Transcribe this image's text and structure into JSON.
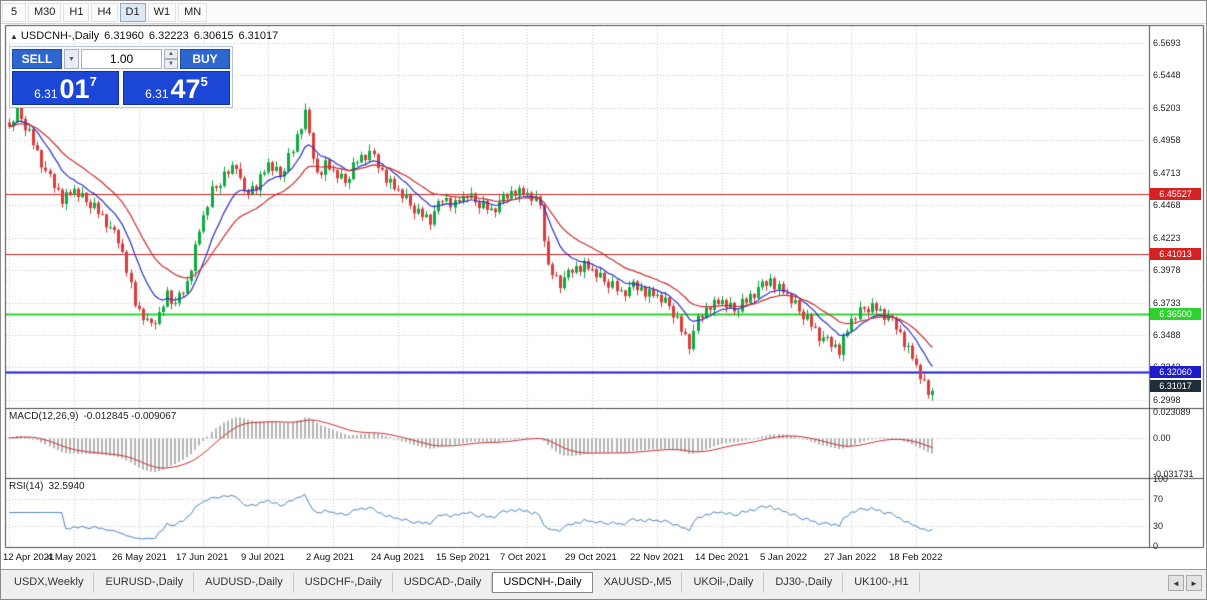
{
  "toolbar": {
    "periods": [
      {
        "label": "5",
        "active": false
      },
      {
        "label": "M30",
        "active": false
      },
      {
        "label": "H1",
        "active": false
      },
      {
        "label": "H4",
        "active": false
      },
      {
        "label": "D1",
        "active": true
      },
      {
        "label": "W1",
        "active": false
      },
      {
        "label": "MN",
        "active": false
      }
    ]
  },
  "chart_header": {
    "arrow": "▲",
    "symbol": "USDCNH-,Daily",
    "open": "6.31960",
    "high": "6.32223",
    "low": "6.30615",
    "close": "6.31017"
  },
  "trade_panel": {
    "sell_label": "SELL",
    "buy_label": "BUY",
    "volume": "1.00",
    "volume_dropdown_icon": "▼",
    "stepper_up_icon": "▲",
    "stepper_down_icon": "▼",
    "sell_price_prefix": "6.31",
    "sell_price_big": "01",
    "sell_price_sup": "7",
    "buy_price_prefix": "6.31",
    "buy_price_big": "47",
    "buy_price_sup": "5"
  },
  "price_axis": {
    "labels": [
      "6.5693",
      "6.5448",
      "6.5203",
      "6.4958",
      "6.4713",
      "6.4468",
      "6.4223",
      "6.3978",
      "6.3733",
      "6.3488",
      "6.3243",
      "6.2998"
    ]
  },
  "hlines": [
    {
      "value": 6.45527,
      "label": "6.45527",
      "color": "#d42222",
      "width": 1
    },
    {
      "value": 6.41013,
      "label": "6.41013",
      "color": "#d42222",
      "width": 1
    },
    {
      "value": 6.365,
      "label": "6.36500",
      "color": "#2ed22e",
      "width": 2
    },
    {
      "value": 6.3206,
      "label": "6.32060",
      "color": "#1c1ccd",
      "width": 2
    }
  ],
  "current_price": {
    "value": 6.31017,
    "label": "6.31017",
    "bg": "#202c38"
  },
  "indicators": {
    "macd": {
      "name": "MACD(12,26,9)",
      "values": "-0.012845 -0.009067",
      "axis": [
        {
          "v": 0.023089,
          "label": "0.023089"
        },
        {
          "v": 0,
          "label": "0.00"
        },
        {
          "v": -0.031731,
          "label": "-0.031731"
        }
      ]
    },
    "rsi": {
      "name": "RSI(14)",
      "value": "32.5940",
      "levels": [
        70,
        30
      ],
      "axis": [
        {
          "v": 100,
          "label": "100"
        },
        {
          "v": 70,
          "label": "70"
        },
        {
          "v": 30,
          "label": "30"
        },
        {
          "v": 0,
          "label": "0"
        }
      ]
    }
  },
  "date_axis": {
    "labels": [
      {
        "i": 0,
        "text": "12 Apr 2021"
      },
      {
        "i": 16,
        "text": "4 May 2021"
      },
      {
        "i": 32,
        "text": "26 May 2021"
      },
      {
        "i": 48,
        "text": "17 Jun 2021"
      },
      {
        "i": 64,
        "text": "9 Jul 2021"
      },
      {
        "i": 80,
        "text": "2 Aug 2021"
      },
      {
        "i": 96,
        "text": "24 Aug 2021"
      },
      {
        "i": 112,
        "text": "15 Sep 2021"
      },
      {
        "i": 128,
        "text": "7 Oct 2021"
      },
      {
        "i": 144,
        "text": "29 Oct 2021"
      },
      {
        "i": 160,
        "text": "22 Nov 2021"
      },
      {
        "i": 176,
        "text": "14 Dec 2021"
      },
      {
        "i": 192,
        "text": "5 Jan 2022"
      },
      {
        "i": 208,
        "text": "27 Jan 2022"
      },
      {
        "i": 224,
        "text": "18 Feb 2022"
      }
    ]
  },
  "tabbar": {
    "tabs": [
      {
        "label": "USDX,Weekly",
        "active": false
      },
      {
        "label": "EURUSD-,Daily",
        "active": false
      },
      {
        "label": "AUDUSD-,Daily",
        "active": false
      },
      {
        "label": "USDCHF-,Daily",
        "active": false
      },
      {
        "label": "USDCAD-,Daily",
        "active": false
      },
      {
        "label": "USDCNH-,Daily",
        "active": true
      },
      {
        "label": "XAUUSD-,M5",
        "active": false
      },
      {
        "label": "UKOil-,Daily",
        "active": false
      },
      {
        "label": "DJ30-,Daily",
        "active": false
      },
      {
        "label": "UK100-,H1",
        "active": false
      }
    ],
    "left_arrow": "◄",
    "right_arrow": "►"
  },
  "chart_data": {
    "type": "candlestick",
    "symbol": "USDCNH",
    "period": "Daily",
    "current_ohlc": {
      "open": 6.3196,
      "high": 6.32223,
      "low": 6.30615,
      "close": 6.31017
    },
    "ylim": [
      6.2937,
      6.5821
    ],
    "count": 229,
    "up_color": "#0fab40",
    "down_color": "#dc3c3c",
    "close_anchors": [
      [
        0,
        6.505
      ],
      [
        2,
        6.52
      ],
      [
        5,
        6.5
      ],
      [
        9,
        6.472
      ],
      [
        13,
        6.452
      ],
      [
        16,
        6.458
      ],
      [
        20,
        6.448
      ],
      [
        24,
        6.434
      ],
      [
        27,
        6.42
      ],
      [
        29,
        6.4
      ],
      [
        31,
        6.372
      ],
      [
        34,
        6.358
      ],
      [
        37,
        6.362
      ],
      [
        39,
        6.38
      ],
      [
        41,
        6.372
      ],
      [
        44,
        6.388
      ],
      [
        47,
        6.428
      ],
      [
        50,
        6.458
      ],
      [
        53,
        6.468
      ],
      [
        56,
        6.478
      ],
      [
        58,
        6.455
      ],
      [
        61,
        6.462
      ],
      [
        64,
        6.478
      ],
      [
        67,
        6.47
      ],
      [
        70,
        6.488
      ],
      [
        73,
        6.518
      ],
      [
        74,
        6.498
      ],
      [
        76,
        6.47
      ],
      [
        78,
        6.478
      ],
      [
        80,
        6.472
      ],
      [
        83,
        6.465
      ],
      [
        86,
        6.48
      ],
      [
        89,
        6.487
      ],
      [
        92,
        6.472
      ],
      [
        95,
        6.46
      ],
      [
        98,
        6.452
      ],
      [
        101,
        6.44
      ],
      [
        104,
        6.436
      ],
      [
        107,
        6.452
      ],
      [
        110,
        6.448
      ],
      [
        113,
        6.455
      ],
      [
        116,
        6.448
      ],
      [
        119,
        6.442
      ],
      [
        122,
        6.452
      ],
      [
        125,
        6.458
      ],
      [
        128,
        6.455
      ],
      [
        131,
        6.448
      ],
      [
        133,
        6.398
      ],
      [
        136,
        6.388
      ],
      [
        139,
        6.398
      ],
      [
        142,
        6.402
      ],
      [
        145,
        6.395
      ],
      [
        148,
        6.388
      ],
      [
        151,
        6.38
      ],
      [
        154,
        6.386
      ],
      [
        157,
        6.382
      ],
      [
        160,
        6.378
      ],
      [
        163,
        6.372
      ],
      [
        166,
        6.352
      ],
      [
        168,
        6.342
      ],
      [
        170,
        6.36
      ],
      [
        173,
        6.372
      ],
      [
        176,
        6.374
      ],
      [
        179,
        6.368
      ],
      [
        182,
        6.374
      ],
      [
        185,
        6.384
      ],
      [
        188,
        6.39
      ],
      [
        191,
        6.382
      ],
      [
        194,
        6.372
      ],
      [
        197,
        6.36
      ],
      [
        200,
        6.348
      ],
      [
        203,
        6.342
      ],
      [
        205,
        6.338
      ],
      [
        208,
        6.36
      ],
      [
        211,
        6.37
      ],
      [
        214,
        6.368
      ],
      [
        217,
        6.362
      ],
      [
        219,
        6.355
      ],
      [
        221,
        6.344
      ],
      [
        223,
        6.332
      ],
      [
        225,
        6.318
      ],
      [
        227,
        6.305
      ],
      [
        228,
        6.31
      ]
    ],
    "wiggle": [
      0.0012,
      -0.0026,
      0.0031,
      -0.0014,
      -0.0034,
      0.0042,
      -0.0008,
      0.0024,
      -0.0038,
      0.0009,
      0.0033,
      -0.0021,
      0.0016,
      -0.0042,
      0.0027,
      -0.0011
    ],
    "wick_up": [
      0.0031,
      0.0012,
      0.0044,
      0.0008,
      0.0022,
      0.0038,
      0.0015,
      0.0027,
      0.0006,
      0.0048,
      0.0018,
      0.001,
      0.0035,
      0.0013,
      0.0025,
      0.002
    ],
    "wick_down": [
      0.0018,
      0.0036,
      0.0009,
      0.0028,
      0.0044,
      0.0012,
      0.0031,
      0.0007,
      0.004,
      0.0016,
      0.0024,
      0.0038,
      0.0011,
      0.0029,
      0.0048,
      0.0014
    ],
    "ma": [
      {
        "period": 10,
        "color": "#2a35c8"
      },
      {
        "period": 22,
        "color": "#c83232"
      }
    ],
    "macd": {
      "fast": 12,
      "slow": 26,
      "signal": 9,
      "range": [
        -0.0345,
        0.0245
      ],
      "hist_color": "#b4b4b4",
      "signal_color": "#c83232"
    },
    "rsi": {
      "period": 14,
      "color": "#4a86c8"
    }
  }
}
